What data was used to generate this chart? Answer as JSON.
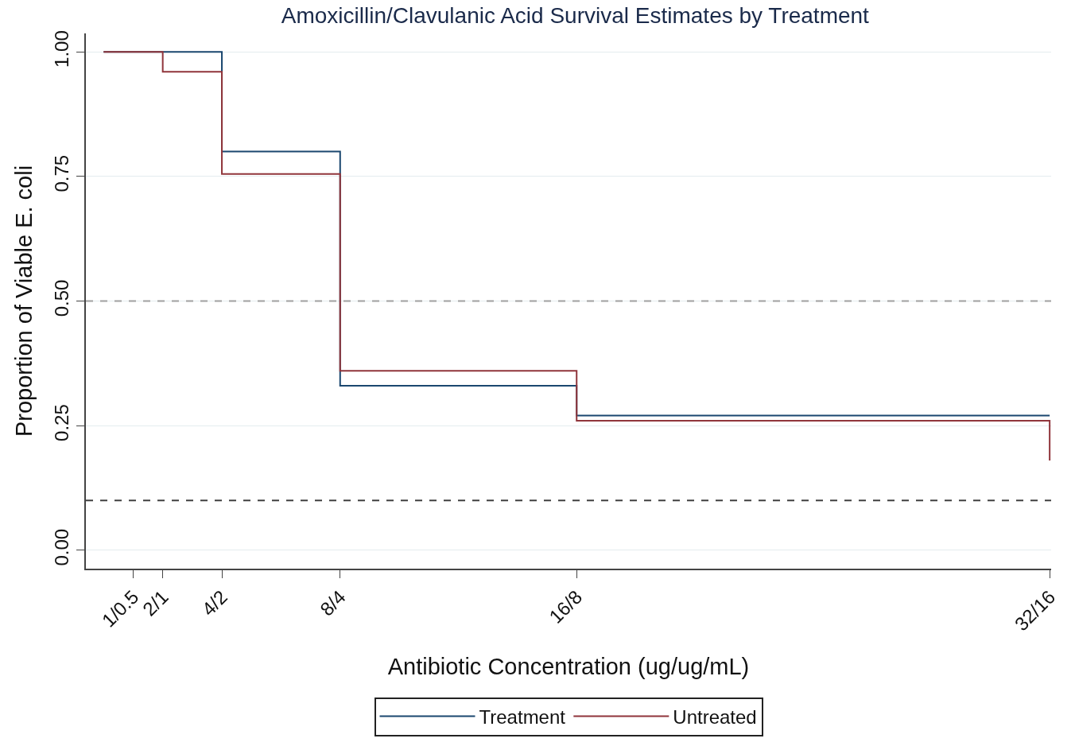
{
  "chart_data": {
    "type": "step",
    "title": "Amoxicillin/Clavulanic Acid Survival Estimates by Treatment",
    "xlabel": "Antibiotic Concentration (ug/ug/mL)",
    "ylabel": "Proportion of Viable E. coli",
    "categories": [
      null,
      "1/0.5",
      "2/1",
      null,
      "4/2",
      null,
      null,
      null,
      "8/4",
      null,
      null,
      null,
      null,
      null,
      null,
      null,
      "16/8",
      null,
      null,
      null,
      null,
      null,
      null,
      null,
      null,
      null,
      null,
      null,
      null,
      null,
      null,
      null,
      "32/16"
    ],
    "ylim": [
      -0.037,
      1.037
    ],
    "yticks": [
      {
        "value": 0,
        "label": "0.00"
      },
      {
        "value": 0.25,
        "label": "0.25"
      },
      {
        "value": 0.5,
        "label": "0.50"
      },
      {
        "value": 0.75,
        "label": "0.75"
      },
      {
        "value": 1,
        "label": "1.00"
      }
    ],
    "series": [
      {
        "name": "Treatment",
        "color": "#1a476f",
        "values": [
          1,
          1,
          1,
          1,
          0.8,
          0.8,
          0.8,
          0.8,
          0.33,
          0.33,
          0.33,
          0.33,
          0.33,
          0.33,
          0.33,
          0.33,
          0.27,
          0.27,
          0.27,
          0.27,
          0.27,
          0.27,
          0.27,
          0.27,
          0.27,
          0.27,
          0.27,
          0.27,
          0.27,
          0.27,
          0.27,
          0.27,
          0.27
        ]
      },
      {
        "name": "Untreated",
        "color": "#90353b",
        "values": [
          1,
          1,
          0.96,
          0.96,
          0.755,
          0.755,
          0.755,
          0.755,
          0.36,
          0.36,
          0.36,
          0.36,
          0.36,
          0.36,
          0.36,
          0.36,
          0.26,
          0.26,
          0.26,
          0.26,
          0.26,
          0.26,
          0.26,
          0.26,
          0.26,
          0.26,
          0.26,
          0.26,
          0.26,
          0.26,
          0.26,
          0.26,
          0.18
        ]
      }
    ],
    "ref_lines": [
      {
        "axis": "y",
        "value": 0.5,
        "color": "#a0a0a0",
        "line_style": "dashed"
      },
      {
        "axis": "y",
        "value": 0.1,
        "color": "#404040",
        "line_style": "dashed"
      }
    ],
    "grid": "y",
    "legend": "bottom",
    "line_style": "solid",
    "marker": "none"
  }
}
